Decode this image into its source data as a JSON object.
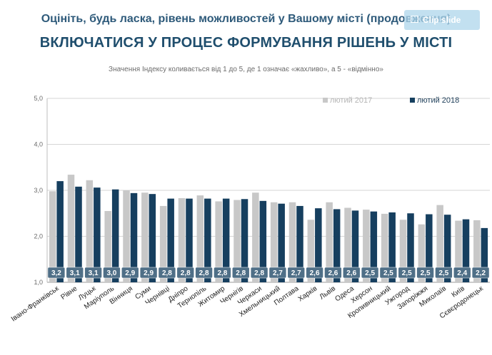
{
  "header": {
    "title1": "Оцініть, будь ласка, рівень можливостей у Вашому місті (продовження)",
    "title2": "ВКЛЮЧАТИСЯ У ПРОЦЕС ФОРМУВАННЯ РІШЕНЬ У МІСТІ",
    "subtitle": "Значення Індексу коливається від 1 до 5, де 1 означає «жахливо», а 5 - «відмінно»"
  },
  "overlay": {
    "clip_label": "Clip slide"
  },
  "colors": {
    "series_2017": "#c8c8c8",
    "series_2018": "#163f5f",
    "title": "#1f4e6d",
    "label_text": "#ffffff"
  },
  "chart_data": {
    "type": "bar",
    "title": "ВКЛЮЧАТИСЯ У ПРОЦЕС ФОРМУВАННЯ РІШЕНЬ У МІСТІ",
    "xlabel": "",
    "ylabel": "",
    "ylim": [
      1.0,
      5.0
    ],
    "yticks": [
      "1,0",
      "2,0",
      "3,0",
      "4,0",
      "5,0"
    ],
    "ytick_values": [
      1,
      2,
      3,
      4,
      5
    ],
    "legend_position": "top-right",
    "categories": [
      "Івано-Франківськ",
      "Рівне",
      "Луцьк",
      "Маріуполь",
      "Вінниця",
      "Суми",
      "Чернівці",
      "Дніпро",
      "Тернопіль",
      "Житомир",
      "Чернігів",
      "Черкаси",
      "Хмельницький",
      "Полтава",
      "Харків",
      "Львів",
      "Одеса",
      "Херсон",
      "Кропивницький",
      "Ужгород",
      "Запоріжжя",
      "Миколаїв",
      "Київ",
      "Сєвєродонецьк"
    ],
    "series": [
      {
        "name": "лютий 2017",
        "values": [
          2.98,
          3.34,
          3.22,
          2.55,
          3.0,
          2.95,
          2.66,
          2.83,
          2.89,
          2.76,
          2.79,
          2.95,
          2.74,
          2.74,
          2.36,
          2.74,
          2.62,
          2.58,
          2.49,
          2.36,
          2.26,
          2.68,
          2.34,
          2.35
        ]
      },
      {
        "name": "лютий 2018",
        "values": [
          3.2,
          3.08,
          3.06,
          3.02,
          2.94,
          2.92,
          2.82,
          2.82,
          2.82,
          2.82,
          2.81,
          2.77,
          2.71,
          2.66,
          2.61,
          2.59,
          2.56,
          2.54,
          2.52,
          2.5,
          2.48,
          2.47,
          2.37,
          2.18
        ]
      }
    ],
    "data_labels": [
      "3,2",
      "3,1",
      "3,1",
      "3,0",
      "2,9",
      "2,9",
      "2,8",
      "2,8",
      "2,8",
      "2,8",
      "2,8",
      "2,8",
      "2,7",
      "2,7",
      "2,6",
      "2,6",
      "2,6",
      "2,5",
      "2,5",
      "2,5",
      "2,5",
      "2,5",
      "2,4",
      "2,2"
    ]
  }
}
